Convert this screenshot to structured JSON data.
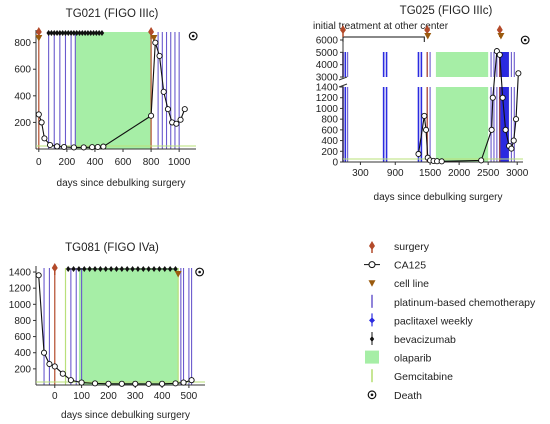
{
  "colors": {
    "olaparib": "#a6eea6",
    "platinum": "#6a5acd",
    "paclitaxel": "#2b2be0",
    "gemcitabine": "#b9e07a",
    "surgery": "#b34a2a",
    "cell_line": "#9a5a0e",
    "ca125": "#111111",
    "bevacizumab": "#111111",
    "axis": "#333333"
  },
  "chart_data": [
    {
      "type": "line",
      "title": "TG021 (FIGO IIIc)",
      "subtitle": "",
      "xlabel": "days since debulking surgery",
      "ylabel": "",
      "xlim": [
        -20,
        1120
      ],
      "ylim": [
        0,
        880
      ],
      "xticks": [
        0,
        200,
        400,
        600,
        800,
        1000
      ],
      "yticks": [
        200,
        400,
        600,
        800
      ],
      "ca125": {
        "x": [
          0,
          20,
          40,
          80,
          130,
          180,
          250,
          320,
          380,
          420,
          460,
          800,
          830,
          860,
          890,
          920,
          950,
          980,
          1010,
          1040
        ],
        "y": [
          260,
          200,
          80,
          30,
          20,
          15,
          12,
          12,
          14,
          15,
          18,
          250,
          800,
          700,
          430,
          300,
          200,
          190,
          220,
          300
        ]
      },
      "surgery": [
        0,
        800
      ],
      "cell_line": [
        0,
        820
      ],
      "platinum": [
        70,
        110,
        150,
        190,
        230,
        260,
        850,
        880,
        910,
        940,
        970,
        1000
      ],
      "paclitaxel": [],
      "bevacizumab": [
        70,
        90,
        110,
        130,
        150,
        170,
        190,
        210,
        230,
        250,
        270,
        290,
        310,
        330,
        350,
        370,
        390,
        410,
        430,
        450
      ],
      "olaparib": [
        [
          260,
          800
        ]
      ],
      "gemcitabine": [],
      "death": 1100
    },
    {
      "type": "line",
      "title": "TG025 (FIGO IIIc)",
      "subtitle": "initial treatment at other center",
      "xlabel": "days since debulking surgery",
      "ylabel": "",
      "xlim": [
        0,
        3100
      ],
      "ylim": [
        0,
        6000
      ],
      "axis_break": [
        1400,
        3000
      ],
      "xticks": [
        300,
        900,
        1500,
        2000,
        2500,
        3000
      ],
      "yticks": [
        0,
        200,
        400,
        600,
        800,
        1000,
        1200,
        1400,
        3000,
        4000,
        5000,
        6000
      ],
      "ca125": {
        "x": [
          1300,
          1400,
          1430,
          1460,
          1500,
          1560,
          1620,
          1700,
          2380,
          2560,
          2580,
          2650,
          2700,
          2750,
          2800,
          2860,
          2900,
          2940,
          2980,
          3020
        ],
        "y": [
          150,
          860,
          600,
          80,
          30,
          20,
          15,
          12,
          30,
          600,
          1200,
          5100,
          4800,
          1200,
          600,
          300,
          250,
          400,
          800,
          3300
        ]
      },
      "surgery": [
        0,
        1450,
        2700
      ],
      "cell_line": [
        1460,
        2720
      ],
      "platinum": [
        80,
        1450,
        1500,
        2550,
        2600,
        2650,
        2700,
        2750,
        2800,
        2850,
        2900,
        2950
      ],
      "paclitaxel": [
        0,
        40,
        700,
        750,
        1300,
        1350,
        2700,
        2720,
        2740,
        2760,
        2780,
        2800,
        2820,
        2840
      ],
      "bevacizumab": [],
      "olaparib": [
        [
          1600,
          2500
        ]
      ],
      "gemcitabine": [],
      "initial_treatment_range": [
        0,
        1400
      ],
      "death": 3000
    },
    {
      "type": "line",
      "title": "TG081 (FIGO IVa)",
      "subtitle": "",
      "xlabel": "days since debulking surgery",
      "ylabel": "",
      "xlim": [
        -70,
        560
      ],
      "ylim": [
        0,
        1450
      ],
      "xticks": [
        0,
        100,
        200,
        300,
        400,
        500
      ],
      "yticks": [
        200,
        400,
        600,
        800,
        1000,
        1200,
        1400
      ],
      "ca125": {
        "x": [
          -60,
          -40,
          -20,
          0,
          30,
          60,
          100,
          150,
          200,
          250,
          300,
          350,
          400,
          450,
          480,
          510
        ],
        "y": [
          1360,
          400,
          260,
          230,
          140,
          60,
          30,
          20,
          15,
          15,
          15,
          14,
          15,
          20,
          30,
          60
        ]
      },
      "surgery": [
        0
      ],
      "cell_line": [
        460
      ],
      "platinum": [
        -40,
        -20,
        60,
        80,
        100,
        470,
        480,
        500,
        510
      ],
      "paclitaxel": [],
      "bevacizumab": [
        50,
        70,
        90,
        110,
        130,
        150,
        170,
        190,
        210,
        230,
        250,
        270,
        290,
        310,
        330,
        350,
        370,
        390,
        410,
        430,
        450
      ],
      "olaparib": [
        [
          90,
          460
        ]
      ],
      "gemcitabine": [
        40,
        460
      ],
      "death": 540
    }
  ],
  "legend": {
    "items": [
      {
        "key": "surgery",
        "label": "surgery"
      },
      {
        "key": "ca125",
        "label": "CA125"
      },
      {
        "key": "cell_line",
        "label": "cell line"
      },
      {
        "key": "platinum",
        "label": "platinum-based chemotherapy"
      },
      {
        "key": "paclitaxel",
        "label": "paclitaxel weekly"
      },
      {
        "key": "bevacizumab",
        "label": "bevacizumab"
      },
      {
        "key": "olaparib",
        "label": "olaparib"
      },
      {
        "key": "gemcitabine",
        "label": "Gemcitabine"
      },
      {
        "key": "death",
        "label": "Death"
      }
    ]
  }
}
